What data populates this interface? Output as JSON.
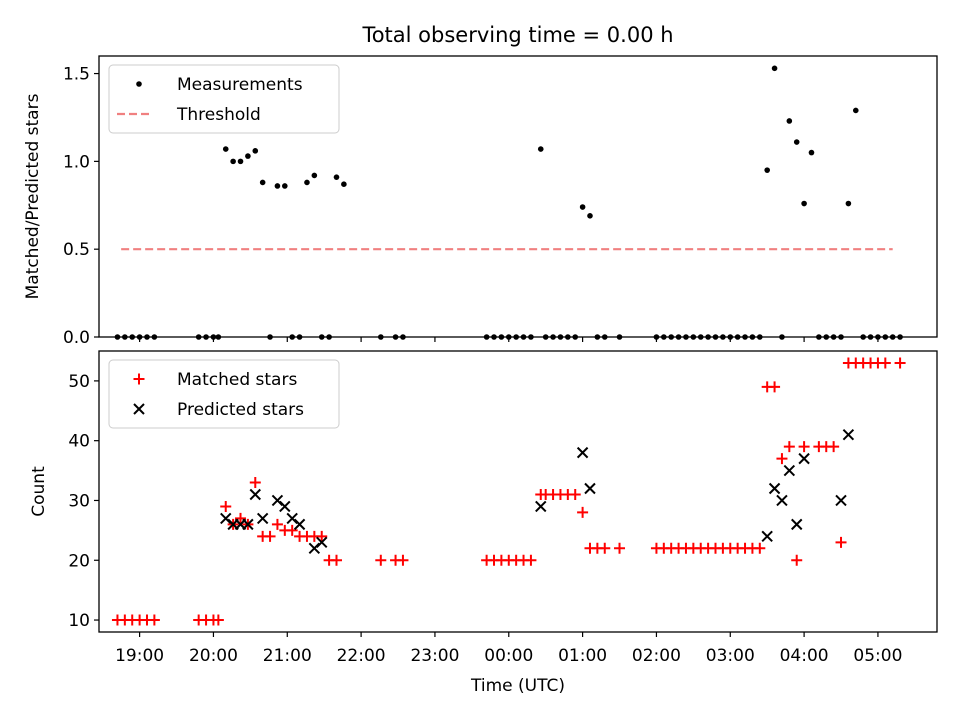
{
  "chart_data": [
    {
      "type": "scatter",
      "title": "Total observing time = 0.00 h",
      "xlabel": "",
      "ylabel": "Matched/Predicted stars",
      "x_unit": "time (UTC)",
      "xlim": [
        "18:27",
        "05:48"
      ],
      "ylim": [
        0,
        1.6
      ],
      "yticks": [
        "0.0",
        "0.5",
        "1.0",
        "1.5"
      ],
      "xticklabels_shown": false,
      "legend_position": "upper left",
      "series": [
        {
          "name": "Measurements",
          "style": "points",
          "color": "#000000",
          "points": [
            [
              "18:42",
              0
            ],
            [
              "18:48",
              0
            ],
            [
              "18:54",
              0
            ],
            [
              "19:00",
              0
            ],
            [
              "19:06",
              0
            ],
            [
              "19:12",
              0
            ],
            [
              "19:48",
              0
            ],
            [
              "19:54",
              0
            ],
            [
              "20:00",
              0
            ],
            [
              "20:04",
              0
            ],
            [
              "20:10",
              1.07
            ],
            [
              "20:16",
              1.0
            ],
            [
              "20:22",
              1.0
            ],
            [
              "20:28",
              1.03
            ],
            [
              "20:34",
              1.06
            ],
            [
              "20:40",
              0.88
            ],
            [
              "20:46",
              0
            ],
            [
              "20:52",
              0.86
            ],
            [
              "20:58",
              0.86
            ],
            [
              "21:04",
              0
            ],
            [
              "21:10",
              0
            ],
            [
              "21:16",
              0.88
            ],
            [
              "21:22",
              0.92
            ],
            [
              "21:28",
              0
            ],
            [
              "21:34",
              0
            ],
            [
              "21:40",
              0.91
            ],
            [
              "21:46",
              0.87
            ],
            [
              "22:16",
              0
            ],
            [
              "22:28",
              0
            ],
            [
              "22:34",
              0
            ],
            [
              "23:42",
              0
            ],
            [
              "23:48",
              0
            ],
            [
              "23:54",
              0
            ],
            [
              "00:00",
              0
            ],
            [
              "00:06",
              0
            ],
            [
              "00:12",
              0
            ],
            [
              "00:18",
              0
            ],
            [
              "00:26",
              1.07
            ],
            [
              "00:30",
              0
            ],
            [
              "00:36",
              0
            ],
            [
              "00:42",
              0
            ],
            [
              "00:48",
              0
            ],
            [
              "00:54",
              0
            ],
            [
              "01:00",
              0.74
            ],
            [
              "01:06",
              0.69
            ],
            [
              "01:12",
              0
            ],
            [
              "01:18",
              0
            ],
            [
              "01:30",
              0
            ],
            [
              "02:00",
              0
            ],
            [
              "02:06",
              0
            ],
            [
              "02:12",
              0
            ],
            [
              "02:18",
              0
            ],
            [
              "02:24",
              0
            ],
            [
              "02:30",
              0
            ],
            [
              "02:36",
              0
            ],
            [
              "02:42",
              0
            ],
            [
              "02:48",
              0
            ],
            [
              "02:54",
              0
            ],
            [
              "03:00",
              0
            ],
            [
              "03:06",
              0
            ],
            [
              "03:12",
              0
            ],
            [
              "03:18",
              0
            ],
            [
              "03:24",
              0
            ],
            [
              "03:30",
              0.95
            ],
            [
              "03:36",
              1.53
            ],
            [
              "03:42",
              0
            ],
            [
              "03:48",
              1.23
            ],
            [
              "03:54",
              1.11
            ],
            [
              "04:00",
              0.76
            ],
            [
              "04:06",
              1.05
            ],
            [
              "04:12",
              0
            ],
            [
              "04:18",
              0
            ],
            [
              "04:24",
              0
            ],
            [
              "04:30",
              0
            ],
            [
              "04:36",
              0.76
            ],
            [
              "04:42",
              1.29
            ],
            [
              "04:48",
              0
            ],
            [
              "04:54",
              0
            ],
            [
              "05:00",
              0
            ],
            [
              "05:06",
              0
            ],
            [
              "05:12",
              0
            ],
            [
              "05:18",
              0
            ]
          ]
        },
        {
          "name": "Threshold",
          "style": "dashed-line",
          "color": "#f08080",
          "points": [
            [
              "18:45",
              0.5
            ],
            [
              "05:12",
              0.5
            ]
          ]
        }
      ]
    },
    {
      "type": "scatter",
      "title": "",
      "xlabel": "Time (UTC)",
      "ylabel": "Count",
      "xlim": [
        "18:27",
        "05:48"
      ],
      "ylim": [
        8,
        55
      ],
      "yticks": [
        "10",
        "20",
        "30",
        "40",
        "50"
      ],
      "xticks": [
        "19:00",
        "20:00",
        "21:00",
        "22:00",
        "23:00",
        "00:00",
        "01:00",
        "02:00",
        "03:00",
        "04:00",
        "05:00"
      ],
      "legend_position": "upper left",
      "series": [
        {
          "name": "Matched stars",
          "marker": "plus",
          "color": "#ff0000",
          "points": [
            [
              "18:42",
              10
            ],
            [
              "18:48",
              10
            ],
            [
              "18:54",
              10
            ],
            [
              "19:00",
              10
            ],
            [
              "19:06",
              10
            ],
            [
              "19:12",
              10
            ],
            [
              "19:48",
              10
            ],
            [
              "19:54",
              10
            ],
            [
              "20:00",
              10
            ],
            [
              "20:04",
              10
            ],
            [
              "20:10",
              29
            ],
            [
              "20:16",
              26
            ],
            [
              "20:22",
              27
            ],
            [
              "20:28",
              26
            ],
            [
              "20:34",
              33
            ],
            [
              "20:40",
              24
            ],
            [
              "20:46",
              24
            ],
            [
              "20:52",
              26
            ],
            [
              "20:58",
              25
            ],
            [
              "21:04",
              25
            ],
            [
              "21:10",
              24
            ],
            [
              "21:16",
              24
            ],
            [
              "21:22",
              24
            ],
            [
              "21:28",
              24
            ],
            [
              "21:34",
              20
            ],
            [
              "21:40",
              20
            ],
            [
              "22:16",
              20
            ],
            [
              "22:28",
              20
            ],
            [
              "22:34",
              20
            ],
            [
              "23:42",
              20
            ],
            [
              "23:48",
              20
            ],
            [
              "23:54",
              20
            ],
            [
              "00:00",
              20
            ],
            [
              "00:06",
              20
            ],
            [
              "00:12",
              20
            ],
            [
              "00:18",
              20
            ],
            [
              "00:26",
              31
            ],
            [
              "00:30",
              31
            ],
            [
              "00:36",
              31
            ],
            [
              "00:42",
              31
            ],
            [
              "00:48",
              31
            ],
            [
              "00:54",
              31
            ],
            [
              "01:00",
              28
            ],
            [
              "01:06",
              22
            ],
            [
              "01:12",
              22
            ],
            [
              "01:18",
              22
            ],
            [
              "01:30",
              22
            ],
            [
              "02:00",
              22
            ],
            [
              "02:06",
              22
            ],
            [
              "02:12",
              22
            ],
            [
              "02:18",
              22
            ],
            [
              "02:24",
              22
            ],
            [
              "02:30",
              22
            ],
            [
              "02:36",
              22
            ],
            [
              "02:42",
              22
            ],
            [
              "02:48",
              22
            ],
            [
              "02:54",
              22
            ],
            [
              "03:00",
              22
            ],
            [
              "03:06",
              22
            ],
            [
              "03:12",
              22
            ],
            [
              "03:18",
              22
            ],
            [
              "03:24",
              22
            ],
            [
              "03:30",
              49
            ],
            [
              "03:36",
              49
            ],
            [
              "03:42",
              37
            ],
            [
              "03:48",
              39
            ],
            [
              "03:54",
              20
            ],
            [
              "04:00",
              39
            ],
            [
              "04:12",
              39
            ],
            [
              "04:18",
              39
            ],
            [
              "04:24",
              39
            ],
            [
              "04:30",
              23
            ],
            [
              "04:36",
              53
            ],
            [
              "04:42",
              53
            ],
            [
              "04:48",
              53
            ],
            [
              "04:54",
              53
            ],
            [
              "05:00",
              53
            ],
            [
              "05:06",
              53
            ],
            [
              "05:18",
              53
            ]
          ]
        },
        {
          "name": "Predicted stars",
          "marker": "x",
          "color": "#000000",
          "points": [
            [
              "20:10",
              27
            ],
            [
              "20:16",
              26
            ],
            [
              "20:22",
              26
            ],
            [
              "20:28",
              26
            ],
            [
              "20:34",
              31
            ],
            [
              "20:40",
              27
            ],
            [
              "20:52",
              30
            ],
            [
              "20:58",
              29
            ],
            [
              "21:04",
              27
            ],
            [
              "21:10",
              26
            ],
            [
              "21:22",
              22
            ],
            [
              "21:28",
              23
            ],
            [
              "00:26",
              29
            ],
            [
              "01:00",
              38
            ],
            [
              "01:06",
              32
            ],
            [
              "03:30",
              24
            ],
            [
              "03:36",
              32
            ],
            [
              "03:42",
              30
            ],
            [
              "03:48",
              35
            ],
            [
              "03:54",
              26
            ],
            [
              "04:00",
              37
            ],
            [
              "04:30",
              30
            ],
            [
              "04:36",
              41
            ]
          ]
        }
      ]
    }
  ]
}
